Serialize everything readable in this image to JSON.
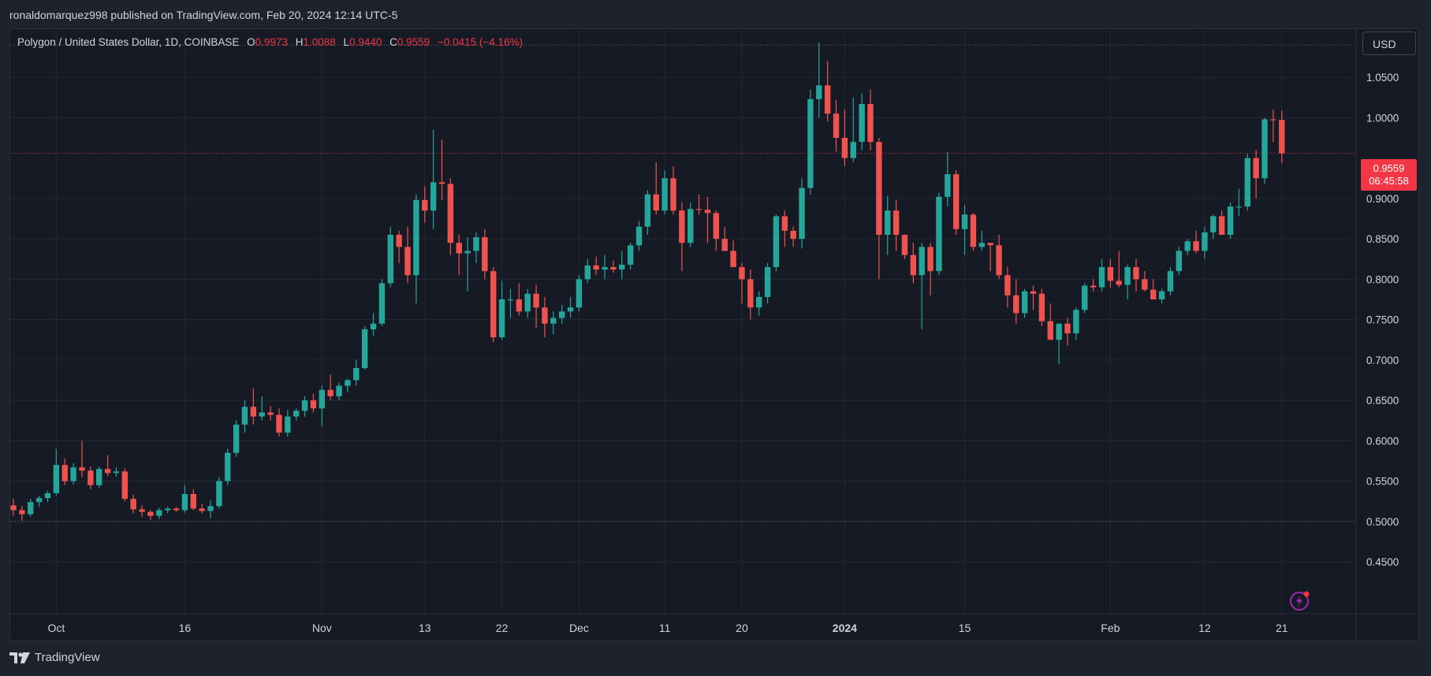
{
  "header": {
    "attribution": "ronaldomarquez998 published on TradingView.com, Feb 20, 2024 12:14 UTC-5"
  },
  "legend": {
    "symbol": "Polygon / United States Dollar, 1D, COINBASE",
    "o_label": "O",
    "o_value": "0.9973",
    "h_label": "H",
    "h_value": "1.0088",
    "l_label": "L",
    "l_value": "0.9440",
    "c_label": "C",
    "c_value": "0.9559",
    "change": "−0.0415 (−4.16%)"
  },
  "currency_button": "USD",
  "price_tag": {
    "price": "0.9559",
    "countdown": "06:45:58"
  },
  "footer": {
    "brand": "TradingView"
  },
  "colors": {
    "up": "#26a69a",
    "down": "#ef5350",
    "background": "#161a25",
    "grid": "#242833",
    "text": "#d1d4dc"
  },
  "chart_data": {
    "type": "candlestick",
    "symbol": "MATIC/USD",
    "interval": "1D",
    "exchange": "COINBASE",
    "y_range": [
      0.41,
      1.095
    ],
    "y_ticks": [
      1.05,
      1.0,
      0.9,
      0.85,
      0.8,
      0.75,
      0.7,
      0.65,
      0.6,
      0.55,
      0.5,
      0.45
    ],
    "y_tick_labels": [
      "1.0500",
      "1.0000",
      "0.9000",
      "0.8500",
      "0.8000",
      "0.7500",
      "0.7000",
      "0.6500",
      "0.6000",
      "0.5500",
      "0.5000",
      "0.4500"
    ],
    "x_ticks": [
      {
        "label": "Oct",
        "index": 5,
        "bold": false
      },
      {
        "label": "16",
        "index": 20,
        "bold": false
      },
      {
        "label": "Nov",
        "index": 36,
        "bold": false
      },
      {
        "label": "13",
        "index": 48,
        "bold": false
      },
      {
        "label": "22",
        "index": 57,
        "bold": false
      },
      {
        "label": "Dec",
        "index": 66,
        "bold": false
      },
      {
        "label": "11",
        "index": 76,
        "bold": false
      },
      {
        "label": "20",
        "index": 85,
        "bold": false
      },
      {
        "label": "2024",
        "index": 97,
        "bold": true
      },
      {
        "label": "15",
        "index": 111,
        "bold": false
      },
      {
        "label": "Feb",
        "index": 128,
        "bold": false
      },
      {
        "label": "12",
        "index": 139,
        "bold": false
      },
      {
        "label": "21",
        "index": 148,
        "bold": false
      }
    ],
    "reference_lines": [
      1.09,
      0.956,
      0.5
    ],
    "last_price": 0.9559,
    "candles": [
      [
        0.52,
        0.528,
        0.507,
        0.514
      ],
      [
        0.514,
        0.519,
        0.501,
        0.509
      ],
      [
        0.509,
        0.528,
        0.506,
        0.524
      ],
      [
        0.524,
        0.532,
        0.518,
        0.529
      ],
      [
        0.529,
        0.538,
        0.524,
        0.535
      ],
      [
        0.535,
        0.59,
        0.532,
        0.57
      ],
      [
        0.57,
        0.578,
        0.545,
        0.55
      ],
      [
        0.55,
        0.572,
        0.546,
        0.567
      ],
      [
        0.567,
        0.6,
        0.555,
        0.563
      ],
      [
        0.563,
        0.568,
        0.54,
        0.545
      ],
      [
        0.545,
        0.568,
        0.542,
        0.565
      ],
      [
        0.565,
        0.582,
        0.556,
        0.56
      ],
      [
        0.56,
        0.567,
        0.555,
        0.562
      ],
      [
        0.562,
        0.566,
        0.525,
        0.528
      ],
      [
        0.528,
        0.533,
        0.51,
        0.515
      ],
      [
        0.515,
        0.52,
        0.506,
        0.512
      ],
      [
        0.512,
        0.514,
        0.502,
        0.507
      ],
      [
        0.507,
        0.517,
        0.503,
        0.514
      ],
      [
        0.514,
        0.518,
        0.51,
        0.516
      ],
      [
        0.516,
        0.518,
        0.512,
        0.514
      ],
      [
        0.514,
        0.545,
        0.511,
        0.534
      ],
      [
        0.534,
        0.54,
        0.514,
        0.516
      ],
      [
        0.516,
        0.522,
        0.51,
        0.513
      ],
      [
        0.513,
        0.526,
        0.504,
        0.519
      ],
      [
        0.519,
        0.555,
        0.516,
        0.55
      ],
      [
        0.55,
        0.59,
        0.545,
        0.585
      ],
      [
        0.585,
        0.625,
        0.58,
        0.62
      ],
      [
        0.62,
        0.65,
        0.61,
        0.642
      ],
      [
        0.642,
        0.665,
        0.62,
        0.63
      ],
      [
        0.63,
        0.655,
        0.625,
        0.635
      ],
      [
        0.635,
        0.643,
        0.625,
        0.632
      ],
      [
        0.632,
        0.64,
        0.605,
        0.61
      ],
      [
        0.61,
        0.638,
        0.605,
        0.63
      ],
      [
        0.63,
        0.64,
        0.625,
        0.637
      ],
      [
        0.637,
        0.655,
        0.63,
        0.65
      ],
      [
        0.65,
        0.658,
        0.635,
        0.64
      ],
      [
        0.64,
        0.668,
        0.618,
        0.663
      ],
      [
        0.663,
        0.682,
        0.65,
        0.655
      ],
      [
        0.655,
        0.672,
        0.65,
        0.668
      ],
      [
        0.668,
        0.677,
        0.66,
        0.675
      ],
      [
        0.675,
        0.7,
        0.668,
        0.69
      ],
      [
        0.69,
        0.742,
        0.688,
        0.738
      ],
      [
        0.738,
        0.758,
        0.73,
        0.745
      ],
      [
        0.745,
        0.8,
        0.742,
        0.795
      ],
      [
        0.795,
        0.865,
        0.79,
        0.855
      ],
      [
        0.855,
        0.86,
        0.82,
        0.84
      ],
      [
        0.84,
        0.865,
        0.795,
        0.805
      ],
      [
        0.805,
        0.905,
        0.77,
        0.898
      ],
      [
        0.898,
        0.915,
        0.87,
        0.885
      ],
      [
        0.885,
        0.985,
        0.862,
        0.92
      ],
      [
        0.92,
        0.973,
        0.898,
        0.918
      ],
      [
        0.918,
        0.925,
        0.83,
        0.845
      ],
      [
        0.845,
        0.855,
        0.805,
        0.832
      ],
      [
        0.832,
        0.852,
        0.785,
        0.835
      ],
      [
        0.835,
        0.858,
        0.82,
        0.852
      ],
      [
        0.852,
        0.862,
        0.8,
        0.81
      ],
      [
        0.81,
        0.815,
        0.722,
        0.728
      ],
      [
        0.728,
        0.798,
        0.725,
        0.775
      ],
      [
        0.775,
        0.788,
        0.752,
        0.775
      ],
      [
        0.775,
        0.795,
        0.755,
        0.76
      ],
      [
        0.76,
        0.788,
        0.752,
        0.782
      ],
      [
        0.782,
        0.793,
        0.74,
        0.765
      ],
      [
        0.765,
        0.778,
        0.728,
        0.745
      ],
      [
        0.745,
        0.76,
        0.732,
        0.752
      ],
      [
        0.752,
        0.768,
        0.745,
        0.76
      ],
      [
        0.76,
        0.778,
        0.752,
        0.765
      ],
      [
        0.765,
        0.805,
        0.76,
        0.8
      ],
      [
        0.8,
        0.825,
        0.795,
        0.817
      ],
      [
        0.817,
        0.828,
        0.805,
        0.812
      ],
      [
        0.812,
        0.83,
        0.8,
        0.815
      ],
      [
        0.815,
        0.823,
        0.808,
        0.812
      ],
      [
        0.812,
        0.835,
        0.8,
        0.818
      ],
      [
        0.818,
        0.845,
        0.812,
        0.842
      ],
      [
        0.842,
        0.872,
        0.835,
        0.865
      ],
      [
        0.865,
        0.91,
        0.855,
        0.905
      ],
      [
        0.905,
        0.945,
        0.88,
        0.885
      ],
      [
        0.885,
        0.935,
        0.88,
        0.925
      ],
      [
        0.925,
        0.94,
        0.88,
        0.885
      ],
      [
        0.885,
        0.895,
        0.81,
        0.845
      ],
      [
        0.845,
        0.895,
        0.84,
        0.887
      ],
      [
        0.887,
        0.905,
        0.88,
        0.886
      ],
      [
        0.886,
        0.902,
        0.845,
        0.882
      ],
      [
        0.882,
        0.885,
        0.835,
        0.85
      ],
      [
        0.85,
        0.865,
        0.835,
        0.835
      ],
      [
        0.835,
        0.848,
        0.815,
        0.815
      ],
      [
        0.815,
        0.82,
        0.77,
        0.8
      ],
      [
        0.8,
        0.812,
        0.75,
        0.765
      ],
      [
        0.765,
        0.785,
        0.755,
        0.778
      ],
      [
        0.778,
        0.82,
        0.77,
        0.815
      ],
      [
        0.815,
        0.88,
        0.81,
        0.878
      ],
      [
        0.878,
        0.885,
        0.84,
        0.86
      ],
      [
        0.86,
        0.865,
        0.84,
        0.85
      ],
      [
        0.85,
        0.925,
        0.838,
        0.913
      ],
      [
        0.913,
        1.035,
        0.905,
        1.023
      ],
      [
        1.023,
        1.093,
        1.0,
        1.04
      ],
      [
        1.04,
        1.07,
        0.995,
        1.005
      ],
      [
        1.005,
        1.022,
        0.958,
        0.975
      ],
      [
        0.975,
        1.01,
        0.94,
        0.95
      ],
      [
        0.95,
        1.025,
        0.945,
        0.97
      ],
      [
        0.97,
        1.03,
        0.96,
        1.017
      ],
      [
        1.017,
        1.035,
        0.96,
        0.97
      ],
      [
        0.97,
        0.975,
        0.8,
        0.855
      ],
      [
        0.855,
        0.903,
        0.83,
        0.885
      ],
      [
        0.885,
        0.898,
        0.835,
        0.855
      ],
      [
        0.855,
        0.855,
        0.825,
        0.83
      ],
      [
        0.83,
        0.845,
        0.795,
        0.805
      ],
      [
        0.805,
        0.845,
        0.738,
        0.84
      ],
      [
        0.84,
        0.845,
        0.78,
        0.81
      ],
      [
        0.81,
        0.907,
        0.805,
        0.902
      ],
      [
        0.902,
        0.958,
        0.89,
        0.93
      ],
      [
        0.93,
        0.935,
        0.855,
        0.862
      ],
      [
        0.862,
        0.892,
        0.83,
        0.88
      ],
      [
        0.88,
        0.882,
        0.835,
        0.84
      ],
      [
        0.84,
        0.86,
        0.835,
        0.845
      ],
      [
        0.845,
        0.845,
        0.81,
        0.842
      ],
      [
        0.842,
        0.855,
        0.8,
        0.805
      ],
      [
        0.805,
        0.815,
        0.765,
        0.78
      ],
      [
        0.78,
        0.8,
        0.745,
        0.758
      ],
      [
        0.758,
        0.788,
        0.752,
        0.785
      ],
      [
        0.785,
        0.792,
        0.762,
        0.782
      ],
      [
        0.782,
        0.788,
        0.742,
        0.748
      ],
      [
        0.748,
        0.77,
        0.725,
        0.725
      ],
      [
        0.725,
        0.745,
        0.695,
        0.745
      ],
      [
        0.745,
        0.752,
        0.718,
        0.733
      ],
      [
        0.733,
        0.765,
        0.725,
        0.762
      ],
      [
        0.762,
        0.795,
        0.758,
        0.792
      ],
      [
        0.792,
        0.8,
        0.785,
        0.79
      ],
      [
        0.79,
        0.825,
        0.785,
        0.815
      ],
      [
        0.815,
        0.825,
        0.79,
        0.798
      ],
      [
        0.798,
        0.835,
        0.79,
        0.793
      ],
      [
        0.793,
        0.818,
        0.775,
        0.815
      ],
      [
        0.815,
        0.825,
        0.785,
        0.8
      ],
      [
        0.8,
        0.81,
        0.785,
        0.787
      ],
      [
        0.787,
        0.8,
        0.775,
        0.775
      ],
      [
        0.775,
        0.788,
        0.77,
        0.785
      ],
      [
        0.785,
        0.815,
        0.78,
        0.81
      ],
      [
        0.81,
        0.84,
        0.805,
        0.835
      ],
      [
        0.835,
        0.85,
        0.83,
        0.847
      ],
      [
        0.847,
        0.86,
        0.832,
        0.835
      ],
      [
        0.835,
        0.865,
        0.825,
        0.858
      ],
      [
        0.858,
        0.88,
        0.85,
        0.878
      ],
      [
        0.878,
        0.885,
        0.855,
        0.855
      ],
      [
        0.855,
        0.895,
        0.85,
        0.89
      ],
      [
        0.89,
        0.912,
        0.878,
        0.89
      ],
      [
        0.89,
        0.955,
        0.885,
        0.95
      ],
      [
        0.95,
        0.96,
        0.9,
        0.925
      ],
      [
        0.925,
        1.0,
        0.918,
        0.998
      ],
      [
        0.998,
        1.01,
        0.97,
        0.997
      ],
      [
        0.9973,
        1.0088,
        0.944,
        0.9559
      ]
    ]
  }
}
